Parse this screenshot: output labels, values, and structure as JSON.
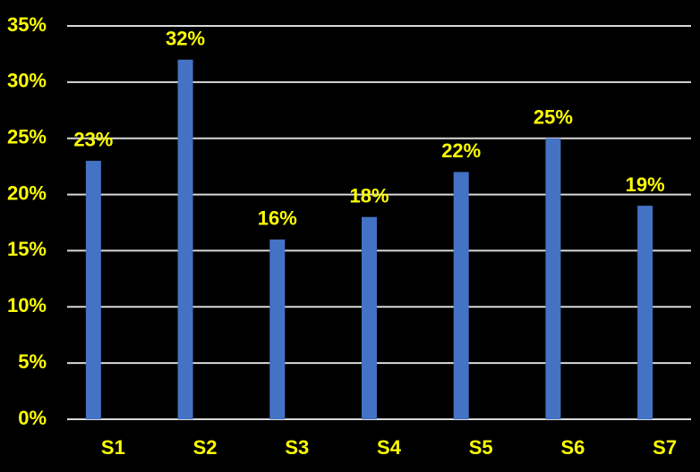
{
  "chart_data": {
    "type": "bar",
    "categories": [
      "S1",
      "S2",
      "S3",
      "S4",
      "S5",
      "S6",
      "S7"
    ],
    "values": [
      23,
      32,
      16,
      18,
      22,
      25,
      19
    ],
    "value_labels": [
      "23%",
      "32%",
      "16%",
      "18%",
      "22%",
      "25%",
      "19%"
    ],
    "color": "#4472c4",
    "ylim": [
      0,
      35
    ],
    "yticks": [
      {
        "value": 0,
        "label": "0%"
      },
      {
        "value": 5,
        "label": "5%"
      },
      {
        "value": 10,
        "label": "10%"
      },
      {
        "value": 15,
        "label": "15%"
      },
      {
        "value": 20,
        "label": "20%"
      },
      {
        "value": 25,
        "label": "25%"
      },
      {
        "value": 30,
        "label": "30%"
      },
      {
        "value": 35,
        "label": "35%"
      }
    ],
    "grid": true
  }
}
